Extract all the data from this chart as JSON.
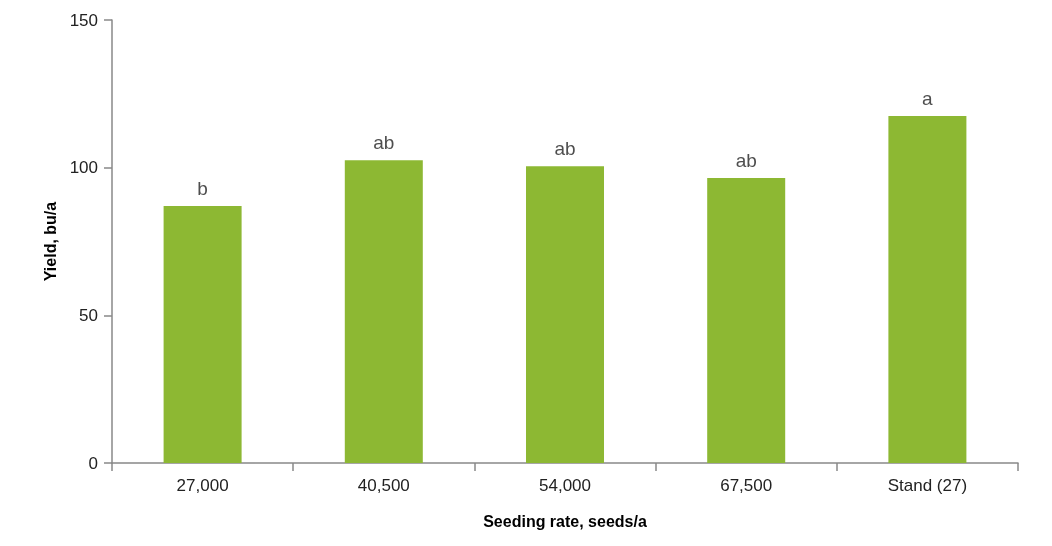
{
  "chart_data": {
    "type": "bar",
    "xlabel": "Seeding rate, seeds/a",
    "ylabel": "Yield, bu/a",
    "categories": [
      "27,000",
      "40,500",
      "54,000",
      "67,500",
      "Stand (27)"
    ],
    "values": [
      87,
      102.5,
      100.5,
      96.5,
      117.5
    ],
    "color": "#8db833",
    "ylim": [
      0,
      150
    ],
    "yticks": [
      0,
      50,
      100,
      150
    ],
    "grid": false,
    "annotations": [
      {
        "text": "b",
        "x": "27,000",
        "y": 87
      },
      {
        "text": "ab",
        "x": "40,500",
        "y": 102.5
      },
      {
        "text": "ab",
        "x": "54,000",
        "y": 100.5
      },
      {
        "text": "ab",
        "x": "67,500",
        "y": 96.5
      },
      {
        "text": "a",
        "x": "Stand (27)",
        "y": 117.5
      }
    ]
  }
}
